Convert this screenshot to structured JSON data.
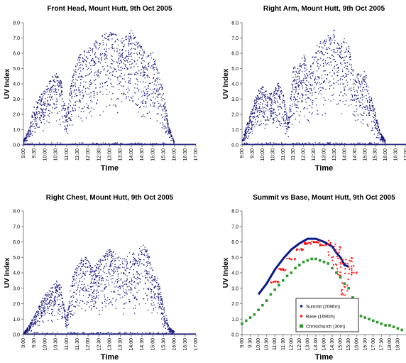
{
  "chart_data": [
    {
      "type": "scatter",
      "title": "Front Head, Mount Hutt, 9th Oct 2005",
      "xlabel": "Time",
      "ylabel": "UV Index",
      "ylim": [
        0,
        8
      ],
      "yticks": [
        "0.0",
        "1.0",
        "2.0",
        "3.0",
        "4.0",
        "5.0",
        "6.0",
        "7.0",
        "8.0"
      ],
      "xlim": [
        "9:00",
        "17:00"
      ],
      "xticks": [
        "9:00",
        "9:30",
        "10:00",
        "10:30",
        "11:00",
        "11:30",
        "12:00",
        "12:30",
        "13:00",
        "13:30",
        "14:00",
        "14:30",
        "15:00",
        "15:30",
        "16:00",
        "16:30",
        "17:00"
      ],
      "series": [
        {
          "color": "#1a1a80",
          "marker": "dot",
          "envelope": [
            [
              9.0,
              0.3
            ],
            [
              9.25,
              1.0
            ],
            [
              9.5,
              2.6
            ],
            [
              9.75,
              3.2
            ],
            [
              10.0,
              3.6
            ],
            [
              10.25,
              4.3
            ],
            [
              10.5,
              4.9
            ],
            [
              10.75,
              4.2
            ],
            [
              11.0,
              2.0
            ],
            [
              11.25,
              4.6
            ],
            [
              11.5,
              5.6
            ],
            [
              11.75,
              6.2
            ],
            [
              12.0,
              6.3
            ],
            [
              12.25,
              6.6
            ],
            [
              12.5,
              7.1
            ],
            [
              12.75,
              7.3
            ],
            [
              13.0,
              7.4
            ],
            [
              13.25,
              7.5
            ],
            [
              13.5,
              6.9
            ],
            [
              13.75,
              7.2
            ],
            [
              14.0,
              7.5
            ],
            [
              14.25,
              7.0
            ],
            [
              14.5,
              6.4
            ],
            [
              14.75,
              5.8
            ],
            [
              15.0,
              6.3
            ],
            [
              15.25,
              5.0
            ],
            [
              15.5,
              3.5
            ],
            [
              15.75,
              1.2
            ],
            [
              16.0,
              0.2
            ],
            [
              17.0,
              0.05
            ]
          ]
        }
      ]
    },
    {
      "type": "scatter",
      "title": "Right Arm, Mount Hutt, 9th Oct 2005",
      "xlabel": "Time",
      "ylabel": "UV Index",
      "ylim": [
        0,
        8
      ],
      "yticks": [
        "0.0",
        "1.0",
        "2.0",
        "3.0",
        "4.0",
        "5.0",
        "6.0",
        "7.0",
        "8.0"
      ],
      "xlim": [
        "9:00",
        "17:00"
      ],
      "xticks": [
        "9:00",
        "9:30",
        "10:00",
        "10:30",
        "11:00",
        "11:30",
        "12:00",
        "12:30",
        "13:00",
        "13:30",
        "14:00",
        "14:30",
        "15:00",
        "15:30",
        "16:00",
        "16:30",
        "17:00"
      ],
      "series": [
        {
          "color": "#1a1a80",
          "marker": "dot",
          "envelope": [
            [
              9.0,
              0.3
            ],
            [
              9.25,
              1.4
            ],
            [
              9.5,
              2.4
            ],
            [
              9.75,
              3.6
            ],
            [
              10.0,
              3.9
            ],
            [
              10.25,
              3.4
            ],
            [
              10.5,
              3.4
            ],
            [
              10.75,
              4.1
            ],
            [
              11.0,
              3.4
            ],
            [
              11.25,
              1.5
            ],
            [
              11.5,
              5.2
            ],
            [
              11.75,
              5.0
            ],
            [
              12.0,
              6.1
            ],
            [
              12.25,
              4.8
            ],
            [
              12.5,
              6.2
            ],
            [
              12.75,
              6.7
            ],
            [
              13.0,
              7.0
            ],
            [
              13.25,
              7.2
            ],
            [
              13.5,
              7.6
            ],
            [
              13.75,
              6.5
            ],
            [
              14.0,
              7.0
            ],
            [
              14.25,
              6.3
            ],
            [
              14.5,
              4.8
            ],
            [
              14.75,
              4.6
            ],
            [
              15.0,
              4.9
            ],
            [
              15.25,
              3.4
            ],
            [
              15.5,
              2.2
            ],
            [
              15.75,
              0.8
            ],
            [
              16.0,
              0.3
            ],
            [
              17.0,
              0.1
            ]
          ]
        }
      ]
    },
    {
      "type": "scatter",
      "title": "Right Chest, Mount Hutt, 9th Oct 2005",
      "xlabel": "Time",
      "ylabel": "UV Index",
      "ylim": [
        0,
        8
      ],
      "yticks": [
        "0.0",
        "1.0",
        "2.0",
        "3.0",
        "4.0",
        "5.0",
        "6.0",
        "7.0",
        "8.0"
      ],
      "xlim": [
        "9:00",
        "17:00"
      ],
      "xticks": [
        "9:00",
        "9:30",
        "10:00",
        "10:30",
        "11:00",
        "11:30",
        "12:00",
        "12:30",
        "13:00",
        "13:30",
        "14:00",
        "14:30",
        "15:00",
        "15:30",
        "16:00",
        "16:30",
        "17:00"
      ],
      "series": [
        {
          "color": "#1a1a80",
          "marker": "dot",
          "envelope": [
            [
              9.0,
              0.1
            ],
            [
              9.25,
              0.6
            ],
            [
              9.5,
              1.2
            ],
            [
              9.75,
              2.0
            ],
            [
              10.0,
              2.6
            ],
            [
              10.25,
              3.0
            ],
            [
              10.5,
              3.6
            ],
            [
              10.75,
              3.2
            ],
            [
              11.0,
              1.0
            ],
            [
              11.25,
              3.7
            ],
            [
              11.5,
              4.5
            ],
            [
              11.75,
              5.1
            ],
            [
              12.0,
              4.9
            ],
            [
              12.25,
              4.4
            ],
            [
              12.5,
              4.8
            ],
            [
              12.75,
              5.2
            ],
            [
              13.0,
              5.6
            ],
            [
              13.25,
              5.3
            ],
            [
              13.5,
              5.0
            ],
            [
              13.75,
              4.9
            ],
            [
              14.0,
              5.5
            ],
            [
              14.25,
              5.1
            ],
            [
              14.5,
              6.1
            ],
            [
              14.75,
              5.5
            ],
            [
              15.0,
              4.2
            ],
            [
              15.25,
              3.6
            ],
            [
              15.5,
              1.9
            ],
            [
              15.75,
              0.5
            ],
            [
              16.0,
              0.2
            ],
            [
              17.0,
              0.1
            ]
          ]
        }
      ]
    },
    {
      "type": "line",
      "title": "Summit vs Base, Mount Hutt, 9th Oct 2005",
      "xlabel": "Time",
      "ylabel": "UV Index",
      "ylim": [
        0,
        8
      ],
      "yticks": [
        "0.0",
        "1.0",
        "2.0",
        "3.0",
        "4.0",
        "5.0",
        "6.0",
        "7.0",
        "8.0"
      ],
      "xlim": [
        "9:00",
        "19:00"
      ],
      "xticks": [
        "9:00",
        "9:30",
        "10:00",
        "10:30",
        "11:00",
        "11:30",
        "12:00",
        "12:30",
        "13:00",
        "13:30",
        "14:00",
        "14:30",
        "15:00",
        "15:30",
        "16:00",
        "16:30",
        "17:00",
        "17:30",
        "18:00",
        "18:30"
      ],
      "legend": "bottom-center",
      "series": [
        {
          "name": "Summit (2086m)",
          "color": "#0a1a8a",
          "x": [
            10.0,
            10.5,
            11.0,
            11.5,
            12.0,
            12.5,
            13.0,
            13.5,
            14.0,
            14.5,
            14.75,
            15.0,
            15.25,
            15.5
          ],
          "y": [
            2.6,
            3.3,
            4.2,
            4.9,
            5.5,
            5.9,
            6.2,
            6.2,
            6.0,
            5.7,
            5.3,
            5.0,
            4.5,
            4.4
          ]
        },
        {
          "name": "Base (1690m)",
          "color": "#ff1010",
          "x": [
            11.0,
            11.5,
            12.0,
            12.5,
            13.0,
            13.5,
            14.0,
            14.5,
            14.75,
            15.0,
            15.25,
            15.5,
            15.75
          ],
          "y": [
            3.4,
            4.2,
            4.9,
            5.5,
            5.9,
            6.0,
            5.8,
            5.5,
            5.1,
            4.4,
            3.1,
            4.4,
            4.5
          ]
        },
        {
          "name": "Christchurch (30m)",
          "color": "#2e9a2e",
          "x": [
            9.0,
            9.25,
            9.5,
            9.75,
            10.0,
            10.25,
            10.5,
            10.75,
            11.0,
            11.25,
            11.5,
            11.75,
            12.0,
            12.25,
            12.5,
            12.75,
            13.0,
            13.25,
            13.5,
            13.75,
            14.0,
            14.25,
            14.5,
            14.75,
            15.0,
            15.25,
            15.5,
            15.75,
            16.0,
            16.25,
            16.5,
            16.75,
            17.0,
            17.25,
            17.5,
            17.75,
            18.0,
            18.25,
            18.5,
            18.75
          ],
          "y": [
            0.7,
            0.9,
            1.1,
            1.3,
            1.6,
            1.9,
            2.2,
            2.6,
            2.9,
            3.2,
            3.5,
            3.8,
            4.0,
            4.3,
            4.5,
            4.7,
            4.8,
            4.9,
            4.9,
            4.8,
            4.7,
            4.6,
            4.3,
            4.0,
            3.7,
            3.3,
            3.0,
            2.4,
            2.0,
            1.2,
            1.1,
            1.0,
            0.9,
            0.8,
            0.7,
            0.6,
            0.6,
            0.5,
            0.4,
            0.3
          ]
        }
      ]
    }
  ]
}
